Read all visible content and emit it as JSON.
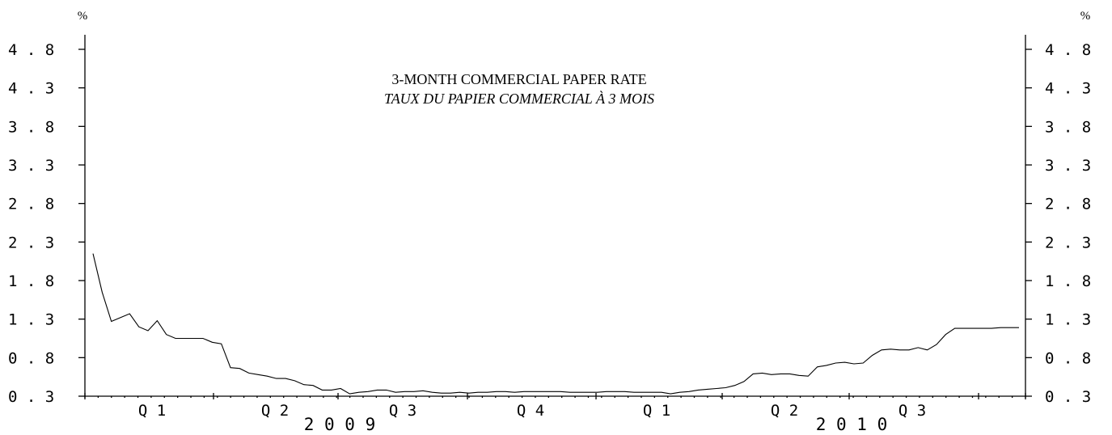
{
  "chart_data": {
    "type": "line",
    "title": "3-MONTH COMMERCIAL PAPER RATE",
    "subtitle": "TAUX DU PAPIER COMMERCIAL À 3 MOIS",
    "ylabel_left": "%",
    "ylabel_right": "%",
    "ylim": [
      0.3,
      4.8
    ],
    "yticks": [
      "0.3",
      "0.8",
      "1.3",
      "1.8",
      "2.3",
      "2.8",
      "3.3",
      "3.8",
      "4.3",
      "4.8"
    ],
    "x_quarter_labels": [
      "Q1",
      "Q2",
      "Q3",
      "Q4",
      "Q1",
      "Q2",
      "Q3"
    ],
    "x_year_labels": [
      "2009",
      "2010"
    ],
    "grid": false,
    "series": [
      {
        "values": [
          2.15,
          1.65,
          1.27,
          1.32,
          1.37,
          1.2,
          1.15,
          1.28,
          1.1,
          1.05,
          1.05,
          1.05,
          1.05,
          1.0,
          0.98,
          0.67,
          0.66,
          0.6,
          0.58,
          0.56,
          0.53,
          0.53,
          0.5,
          0.45,
          0.44,
          0.38,
          0.38,
          0.4,
          0.33,
          0.35,
          0.36,
          0.38,
          0.38,
          0.35,
          0.36,
          0.36,
          0.37,
          0.35,
          0.34,
          0.34,
          0.35,
          0.34,
          0.35,
          0.35,
          0.36,
          0.36,
          0.35,
          0.36,
          0.36,
          0.36,
          0.36,
          0.36,
          0.35,
          0.35,
          0.35,
          0.35,
          0.36,
          0.36,
          0.36,
          0.35,
          0.35,
          0.35,
          0.35,
          0.33,
          0.35,
          0.36,
          0.38,
          0.39,
          0.4,
          0.41,
          0.44,
          0.49,
          0.59,
          0.6,
          0.58,
          0.59,
          0.59,
          0.57,
          0.56,
          0.68,
          0.7,
          0.73,
          0.74,
          0.72,
          0.73,
          0.83,
          0.9,
          0.91,
          0.9,
          0.9,
          0.93,
          0.9,
          0.97,
          1.1,
          1.18,
          1.18,
          1.18,
          1.18,
          1.18,
          1.19,
          1.19,
          1.19
        ]
      }
    ]
  }
}
